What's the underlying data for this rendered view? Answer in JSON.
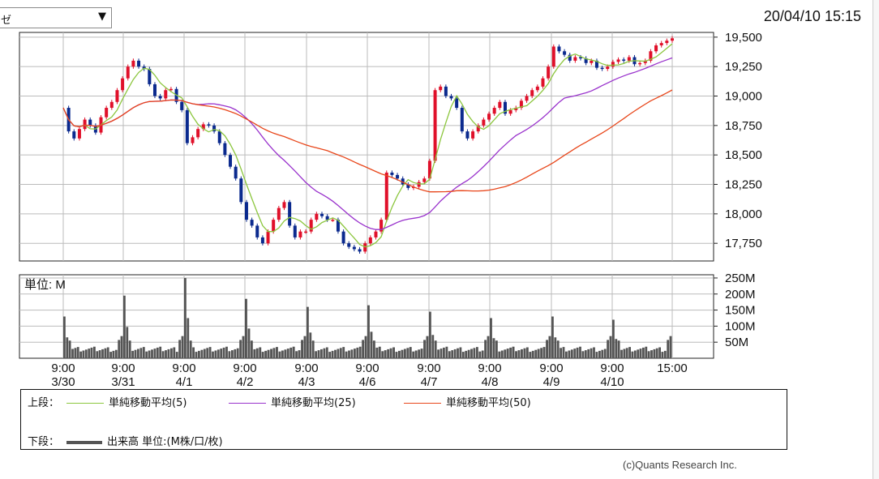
{
  "selector": {
    "value": "ゼ",
    "arrow": "▼"
  },
  "timestamp": "20/04/10 15:15",
  "chart_data": [
    {
      "type": "candlestick",
      "ylim": [
        17600,
        19540
      ],
      "yticks": [
        17750,
        18000,
        18250,
        18500,
        18750,
        19000,
        19250,
        19500
      ],
      "ytick_labels": [
        "17,750",
        "18,000",
        "18,250",
        "18,500",
        "18,750",
        "19,000",
        "19,250",
        "19,500"
      ],
      "grid": true,
      "close_series": [
        18900,
        18700,
        18640,
        18720,
        18800,
        18750,
        18690,
        18820,
        18900,
        18950,
        19050,
        19150,
        19250,
        19300,
        19250,
        19230,
        19100,
        19000,
        18980,
        19050,
        19060,
        18950,
        18880,
        18600,
        18650,
        18720,
        18760,
        18750,
        18700,
        18600,
        18500,
        18400,
        18300,
        18100,
        17950,
        17900,
        17800,
        17750,
        17850,
        17950,
        18050,
        18100,
        17900,
        17800,
        17850,
        17850,
        17950,
        18000,
        17980,
        17950,
        17950,
        17850,
        17750,
        17720,
        17700,
        17680,
        17750,
        17800,
        17850,
        17950,
        18350,
        18330,
        18300,
        18250,
        18220,
        18230,
        18270,
        18300,
        18450,
        19050,
        19080,
        19000,
        18980,
        18900,
        18700,
        18640,
        18700,
        18750,
        18800,
        18850,
        18900,
        18950,
        18850,
        18880,
        18900,
        18960,
        19000,
        19050,
        19080,
        19150,
        19250,
        19420,
        19380,
        19350,
        19300,
        19330,
        19320,
        19280,
        19300,
        19240,
        19230,
        19250,
        19290,
        19310,
        19300,
        19330,
        19270,
        19280,
        19300,
        19380,
        19430,
        19450,
        19470,
        19490
      ],
      "moving_averages": [
        {
          "name": "単純移動平均(5)",
          "color": "#8cc63e",
          "period": 5
        },
        {
          "name": "単純移動平均(25)",
          "color": "#9932cc",
          "period": 25
        },
        {
          "name": "単純移動平均(50)",
          "color": "#e8461a",
          "period": 50
        }
      ],
      "up_color": "#e0102a",
      "down_color": "#0b2a8e"
    },
    {
      "type": "bar",
      "unit_label": "単位: M",
      "ylim": [
        0,
        260
      ],
      "yticks": [
        50,
        100,
        150,
        200,
        250
      ],
      "ytick_labels": [
        "50M",
        "100M",
        "150M",
        "200M",
        "250M"
      ],
      "bar_color": "#555555",
      "day_peaks": [
        130,
        195,
        250,
        185,
        160,
        165,
        145,
        125,
        130,
        120
      ],
      "grid": true
    }
  ],
  "x_axis": {
    "ticks": [
      {
        "time": "9:00",
        "date": "3/30"
      },
      {
        "time": "9:00",
        "date": "3/31"
      },
      {
        "time": "9:00",
        "date": "4/1"
      },
      {
        "time": "9:00",
        "date": "4/2"
      },
      {
        "time": "9:00",
        "date": "4/3"
      },
      {
        "time": "9:00",
        "date": "4/6"
      },
      {
        "time": "9:00",
        "date": "4/7"
      },
      {
        "time": "9:00",
        "date": "4/8"
      },
      {
        "time": "9:00",
        "date": "4/9"
      },
      {
        "time": "9:00",
        "date": "4/10"
      },
      {
        "time": "15:00",
        "date": ""
      }
    ]
  },
  "legend": {
    "upper_label": "上段：",
    "ma5": "単純移動平均(5)",
    "ma25": "単純移動平均(25)",
    "ma50": "単純移動平均(50)",
    "lower_label": "下段：",
    "volume": "出来高 単位:(M株/口/枚)"
  },
  "copyright": "(c)Quants Research Inc."
}
